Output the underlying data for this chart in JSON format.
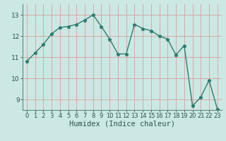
{
  "x": [
    0,
    1,
    2,
    3,
    4,
    5,
    6,
    7,
    8,
    9,
    10,
    11,
    12,
    13,
    14,
    15,
    16,
    17,
    18,
    19,
    20,
    21,
    22,
    23
  ],
  "y": [
    10.8,
    11.2,
    11.6,
    12.1,
    12.4,
    12.45,
    12.55,
    12.75,
    13.0,
    12.45,
    11.85,
    11.15,
    11.15,
    12.55,
    12.35,
    12.25,
    12.0,
    11.85,
    11.1,
    11.55,
    8.7,
    9.1,
    9.9,
    8.55
  ],
  "line_color": "#2e7b6e",
  "marker": "*",
  "marker_color": "#2e7b6e",
  "bg_color": "#cce8e4",
  "grid_color": "#d4a0a0",
  "xlabel": "Humidex (Indice chaleur)",
  "ylim": [
    8.5,
    13.5
  ],
  "xlim": [
    -0.5,
    23.5
  ],
  "yticks": [
    9,
    10,
    11,
    12,
    13
  ],
  "xlabel_fontsize": 7.5,
  "tick_fontsize": 6.5,
  "line_width": 1.0,
  "marker_size": 3.5
}
